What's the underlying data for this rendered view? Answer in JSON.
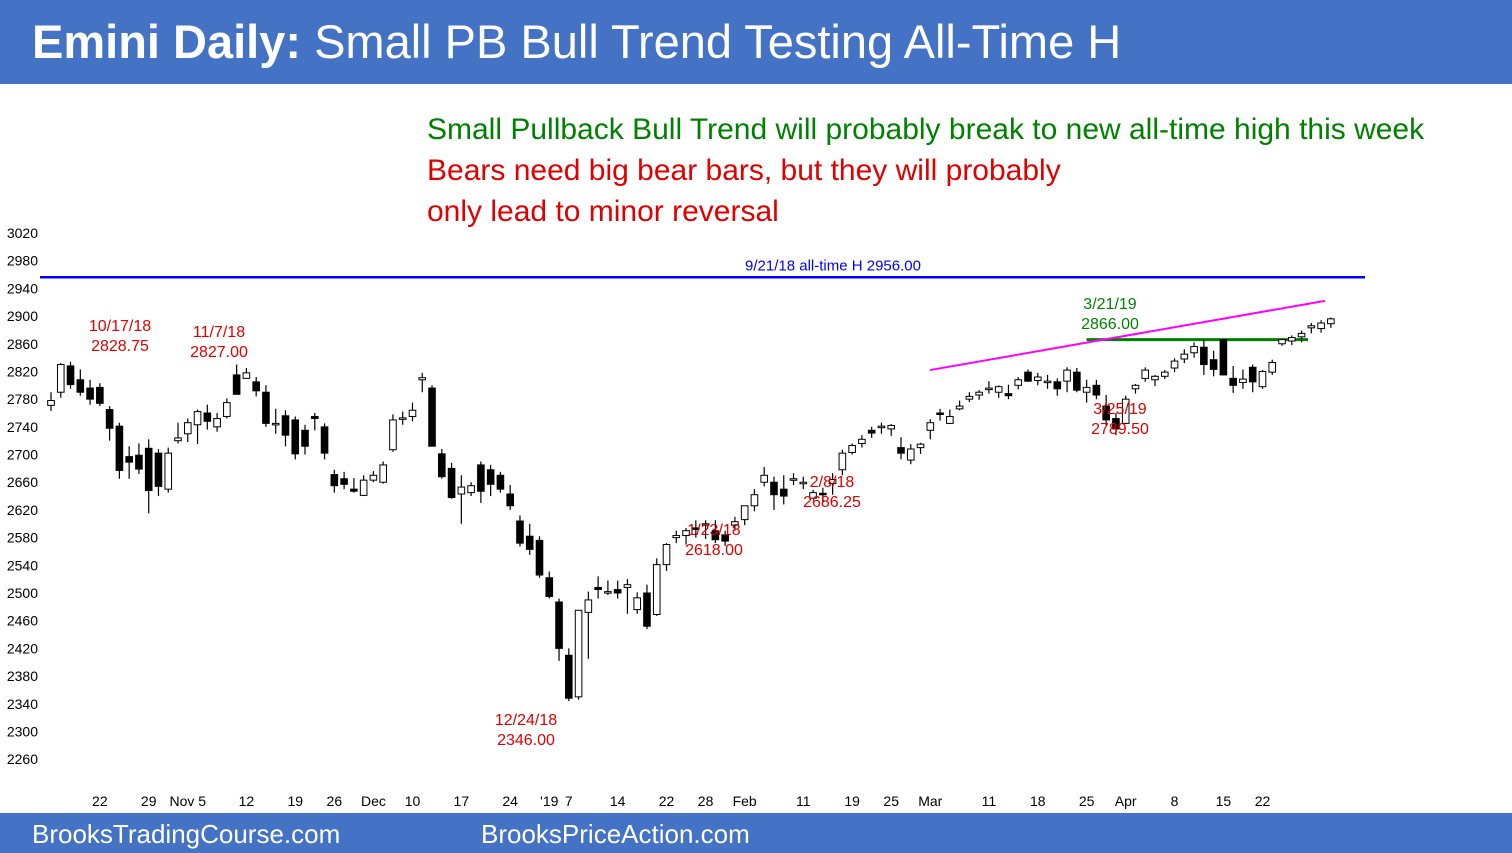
{
  "header": {
    "title_bold": "Emini Daily:",
    "title_rest": "Small PB Bull Trend Testing All-Time H"
  },
  "footer": {
    "left": "BrooksTradingCourse.com",
    "right": "BrooksPriceAction.com"
  },
  "notes": [
    {
      "text": "Small Pullback Bull Trend will probably break to new all-time high this week",
      "color": "#008000"
    },
    {
      "text": "Bears need big bear bars, but they will probably",
      "color": "#e00000"
    },
    {
      "text": "only lead to minor reversal",
      "color": "#e00000"
    }
  ],
  "chart_data": {
    "type": "candlestick",
    "ylim": [
      2240,
      3020
    ],
    "y_ticks": [
      3020,
      2980,
      2940,
      2900,
      2860,
      2820,
      2780,
      2740,
      2700,
      2660,
      2620,
      2580,
      2540,
      2500,
      2460,
      2420,
      2380,
      2340,
      2300,
      2260
    ],
    "x_ticks": [
      {
        "label": "22",
        "bar": 5
      },
      {
        "label": "29",
        "bar": 10
      },
      {
        "label": "Nov 5",
        "bar": 14
      },
      {
        "label": "12",
        "bar": 20
      },
      {
        "label": "19",
        "bar": 25
      },
      {
        "label": "26",
        "bar": 29
      },
      {
        "label": "Dec",
        "bar": 33
      },
      {
        "label": "10",
        "bar": 37
      },
      {
        "label": "17",
        "bar": 42
      },
      {
        "label": "24",
        "bar": 47
      },
      {
        "label": "'19",
        "bar": 51
      },
      {
        "label": "7",
        "bar": 53
      },
      {
        "label": "14",
        "bar": 58
      },
      {
        "label": "22",
        "bar": 63
      },
      {
        "label": "28",
        "bar": 67
      },
      {
        "label": "Feb",
        "bar": 71
      },
      {
        "label": "11",
        "bar": 77
      },
      {
        "label": "19",
        "bar": 82
      },
      {
        "label": "25",
        "bar": 86
      },
      {
        "label": "Mar",
        "bar": 90
      },
      {
        "label": "11",
        "bar": 96
      },
      {
        "label": "18",
        "bar": 101
      },
      {
        "label": "25",
        "bar": 106
      },
      {
        "label": "Apr",
        "bar": 110
      },
      {
        "label": "8",
        "bar": 115
      },
      {
        "label": "15",
        "bar": 120
      },
      {
        "label": "22",
        "bar": 124
      }
    ],
    "candles": [
      [
        2771,
        2790,
        2763,
        2778
      ],
      [
        2790,
        2832,
        2782,
        2830
      ],
      [
        2828,
        2834,
        2795,
        2801
      ],
      [
        2808,
        2823,
        2785,
        2790
      ],
      [
        2796,
        2808,
        2772,
        2780
      ],
      [
        2797,
        2803,
        2770,
        2774
      ],
      [
        2765,
        2770,
        2720,
        2738
      ],
      [
        2741,
        2746,
        2665,
        2677
      ],
      [
        2697,
        2712,
        2665,
        2689
      ],
      [
        2699,
        2716,
        2672,
        2679
      ],
      [
        2709,
        2722,
        2615,
        2648
      ],
      [
        2702,
        2708,
        2640,
        2654
      ],
      [
        2650,
        2710,
        2645,
        2702
      ],
      [
        2720,
        2746,
        2716,
        2724
      ],
      [
        2730,
        2752,
        2718,
        2746
      ],
      [
        2743,
        2765,
        2715,
        2762
      ],
      [
        2760,
        2772,
        2736,
        2748
      ],
      [
        2740,
        2760,
        2733,
        2752
      ],
      [
        2755,
        2781,
        2752,
        2775
      ],
      [
        2815,
        2830,
        2790,
        2787
      ],
      [
        2810,
        2825,
        2810,
        2818
      ],
      [
        2805,
        2812,
        2784,
        2792
      ],
      [
        2790,
        2800,
        2740,
        2745
      ],
      [
        2745,
        2766,
        2730,
        2745
      ],
      [
        2756,
        2764,
        2712,
        2728
      ],
      [
        2750,
        2755,
        2693,
        2701
      ],
      [
        2735,
        2743,
        2700,
        2712
      ],
      [
        2755,
        2760,
        2735,
        2752
      ],
      [
        2740,
        2745,
        2693,
        2702
      ],
      [
        2671,
        2678,
        2645,
        2655
      ],
      [
        2665,
        2675,
        2650,
        2657
      ],
      [
        2650,
        2666,
        2645,
        2647
      ],
      [
        2641,
        2670,
        2640,
        2663
      ],
      [
        2663,
        2676,
        2660,
        2670
      ],
      [
        2660,
        2690,
        2658,
        2685
      ],
      [
        2707,
        2758,
        2704,
        2750
      ],
      [
        2752,
        2762,
        2743,
        2753
      ],
      [
        2755,
        2775,
        2748,
        2764
      ],
      [
        2808,
        2818,
        2790,
        2811
      ],
      [
        2796,
        2800,
        2715,
        2712
      ],
      [
        2701,
        2708,
        2665,
        2668
      ],
      [
        2680,
        2688,
        2636,
        2638
      ],
      [
        2643,
        2670,
        2600,
        2653
      ],
      [
        2645,
        2660,
        2640,
        2655
      ],
      [
        2685,
        2690,
        2630,
        2647
      ],
      [
        2678,
        2685,
        2640,
        2657
      ],
      [
        2670,
        2675,
        2645,
        2650
      ],
      [
        2643,
        2656,
        2620,
        2626
      ],
      [
        2604,
        2612,
        2567,
        2572
      ],
      [
        2582,
        2600,
        2555,
        2563
      ],
      [
        2576,
        2582,
        2522,
        2526
      ],
      [
        2522,
        2531,
        2492,
        2495
      ],
      [
        2487,
        2492,
        2402,
        2420
      ],
      [
        2410,
        2420,
        2344,
        2348
      ],
      [
        2350,
        2475,
        2346,
        2475
      ],
      [
        2472,
        2502,
        2405,
        2490
      ],
      [
        2508,
        2524,
        2492,
        2505
      ],
      [
        2500,
        2518,
        2497,
        2502
      ],
      [
        2505,
        2518,
        2492,
        2500
      ],
      [
        2508,
        2520,
        2470,
        2512
      ],
      [
        2476,
        2501,
        2470,
        2493
      ],
      [
        2500,
        2512,
        2448,
        2452
      ],
      [
        2469,
        2550,
        2467,
        2541
      ],
      [
        2541,
        2572,
        2532,
        2570
      ],
      [
        2580,
        2590,
        2572,
        2583
      ],
      [
        2583,
        2594,
        2570,
        2590
      ],
      [
        2594,
        2605,
        2580,
        2592
      ],
      [
        2598,
        2605,
        2578,
        2600
      ],
      [
        2590,
        2605,
        2572,
        2577
      ],
      [
        2584,
        2590,
        2568,
        2575
      ],
      [
        2598,
        2610,
        2590,
        2603
      ],
      [
        2606,
        2625,
        2598,
        2626
      ],
      [
        2626,
        2650,
        2618,
        2642
      ],
      [
        2660,
        2682,
        2654,
        2670
      ],
      [
        2660,
        2668,
        2620,
        2642
      ],
      [
        2650,
        2670,
        2628,
        2640
      ],
      [
        2664,
        2673,
        2656,
        2665
      ],
      [
        2660,
        2668,
        2650,
        2660
      ],
      [
        2637,
        2649,
        2640,
        2645
      ],
      [
        2644,
        2652,
        2630,
        2643
      ],
      [
        2658,
        2673,
        2642,
        2664
      ],
      [
        2678,
        2707,
        2670,
        2702
      ],
      [
        2703,
        2716,
        2700,
        2713
      ],
      [
        2716,
        2728,
        2710,
        2722
      ],
      [
        2735,
        2740,
        2724,
        2731
      ],
      [
        2739,
        2746,
        2730,
        2741
      ],
      [
        2737,
        2744,
        2727,
        2742
      ],
      [
        2710,
        2725,
        2693,
        2702
      ],
      [
        2692,
        2715,
        2686,
        2708
      ],
      [
        2710,
        2717,
        2701,
        2715
      ],
      [
        2735,
        2751,
        2722,
        2746
      ],
      [
        2760,
        2766,
        2749,
        2758
      ],
      [
        2745,
        2765,
        2744,
        2755
      ],
      [
        2766,
        2778,
        2764,
        2770
      ],
      [
        2780,
        2790,
        2776,
        2784
      ],
      [
        2786,
        2793,
        2779,
        2790
      ],
      [
        2795,
        2806,
        2788,
        2796
      ],
      [
        2790,
        2800,
        2782,
        2798
      ],
      [
        2788,
        2801,
        2780,
        2785
      ],
      [
        2800,
        2812,
        2794,
        2808
      ],
      [
        2819,
        2823,
        2805,
        2806
      ],
      [
        2807,
        2818,
        2800,
        2812
      ],
      [
        2804,
        2815,
        2795,
        2806
      ],
      [
        2805,
        2810,
        2785,
        2795
      ],
      [
        2806,
        2826,
        2790,
        2822
      ],
      [
        2819,
        2825,
        2790,
        2793
      ],
      [
        2790,
        2808,
        2775,
        2797
      ],
      [
        2800,
        2808,
        2780,
        2786
      ],
      [
        2770,
        2786,
        2742,
        2750
      ],
      [
        2752,
        2760,
        2728,
        2737
      ],
      [
        2745,
        2785,
        2744,
        2780
      ],
      [
        2795,
        2802,
        2788,
        2800
      ],
      [
        2810,
        2826,
        2805,
        2822
      ],
      [
        2808,
        2815,
        2799,
        2813
      ],
      [
        2813,
        2822,
        2809,
        2819
      ],
      [
        2825,
        2839,
        2819,
        2835
      ],
      [
        2838,
        2852,
        2832,
        2845
      ],
      [
        2847,
        2862,
        2840,
        2856
      ],
      [
        2855,
        2866,
        2815,
        2830
      ],
      [
        2837,
        2850,
        2813,
        2823
      ],
      [
        2866,
        2866,
        2815,
        2815
      ],
      [
        2810,
        2828,
        2789,
        2800
      ],
      [
        2804,
        2823,
        2795,
        2809
      ],
      [
        2826,
        2830,
        2790,
        2805
      ],
      [
        2798,
        2822,
        2795,
        2820
      ],
      [
        2819,
        2837,
        2815,
        2833
      ],
      [
        2860,
        2866,
        2857,
        2866
      ],
      [
        2864,
        2872,
        2858,
        2869
      ],
      [
        2870,
        2879,
        2862,
        2875
      ],
      [
        2883,
        2890,
        2875,
        2886
      ],
      [
        2882,
        2894,
        2876,
        2890
      ],
      [
        2889,
        2898,
        2883,
        2896
      ]
    ],
    "annotations": [
      {
        "lines": [
          "10/17/18",
          "2828.75"
        ],
        "color": "#e00000"
      },
      {
        "lines": [
          "11/7/18",
          "2827.00"
        ],
        "color": "#e00000"
      },
      {
        "lines": [
          "12/24/18",
          "2346.00"
        ],
        "color": "#e00000"
      },
      {
        "lines": [
          "1/23/18",
          "2618.00"
        ],
        "color": "#e00000"
      },
      {
        "lines": [
          "2/8/18",
          "2686.25"
        ],
        "color": "#e00000"
      },
      {
        "lines": [
          "3/21/19",
          "2866.00"
        ],
        "color": "#008000"
      },
      {
        "lines": [
          "3/25/19",
          "2789.50"
        ],
        "color": "#e00000"
      }
    ],
    "all_time_high": {
      "label": "9/21/18 all-time H 2956.00",
      "value": 2956,
      "color": "#0000ff"
    },
    "support_line": {
      "value": 2866,
      "color": "#008000"
    },
    "trend_line": {
      "color": "#ff00ff",
      "from": [
        2822,
        2822
      ],
      "to": [
        2922,
        2922
      ]
    }
  }
}
